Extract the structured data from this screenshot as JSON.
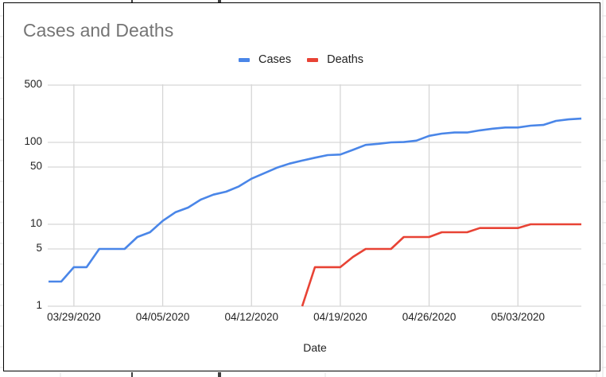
{
  "chart_data": {
    "type": "line",
    "title": "Cases and Deaths",
    "xlabel": "Date",
    "ylabel": "",
    "yscale": "log",
    "ylim": [
      1,
      500
    ],
    "yticks": [
      1,
      5,
      10,
      50,
      100,
      500
    ],
    "ytick_labels": [
      "1",
      "5",
      "10",
      "50",
      "100",
      "500"
    ],
    "xtick_labels": [
      "03/29/2020",
      "04/05/2020",
      "04/12/2020",
      "04/19/2020",
      "04/26/2020",
      "05/03/2020"
    ],
    "grid": true,
    "legend_position": "top",
    "x": [
      "03/27/2020",
      "03/28/2020",
      "03/29/2020",
      "03/30/2020",
      "03/31/2020",
      "04/01/2020",
      "04/02/2020",
      "04/03/2020",
      "04/04/2020",
      "04/05/2020",
      "04/06/2020",
      "04/07/2020",
      "04/08/2020",
      "04/09/2020",
      "04/10/2020",
      "04/11/2020",
      "04/12/2020",
      "04/13/2020",
      "04/14/2020",
      "04/15/2020",
      "04/16/2020",
      "04/17/2020",
      "04/18/2020",
      "04/19/2020",
      "04/20/2020",
      "04/21/2020",
      "04/22/2020",
      "04/23/2020",
      "04/24/2020",
      "04/25/2020",
      "04/26/2020",
      "04/27/2020",
      "04/28/2020",
      "04/29/2020",
      "04/30/2020",
      "05/01/2020",
      "05/02/2020",
      "05/03/2020",
      "05/04/2020",
      "05/05/2020",
      "05/06/2020",
      "05/07/2020",
      "05/08/2020"
    ],
    "series": [
      {
        "name": "Cases",
        "color": "#4a86e8",
        "values": [
          2,
          2,
          3,
          3,
          5,
          5,
          5,
          7,
          8,
          11,
          14,
          16,
          20,
          23,
          25,
          29,
          36,
          42,
          49,
          55,
          60,
          65,
          70,
          71,
          81,
          93,
          96,
          100,
          101,
          105,
          120,
          128,
          132,
          132,
          140,
          147,
          152,
          152,
          160,
          163,
          183,
          191,
          195
        ]
      },
      {
        "name": "Deaths",
        "color": "#e84335",
        "values": [
          0,
          0,
          0,
          0,
          0,
          0,
          0,
          0,
          0,
          0,
          0,
          0,
          0,
          0,
          0,
          0,
          0,
          0,
          0,
          0,
          1,
          3,
          3,
          3,
          4,
          5,
          5,
          5,
          7,
          7,
          7,
          8,
          8,
          8,
          9,
          9,
          9,
          9,
          10,
          10,
          10,
          10,
          10
        ]
      }
    ]
  },
  "legend": {
    "items": [
      {
        "label": "Cases",
        "color": "#4a86e8"
      },
      {
        "label": "Deaths",
        "color": "#e84335"
      }
    ]
  }
}
